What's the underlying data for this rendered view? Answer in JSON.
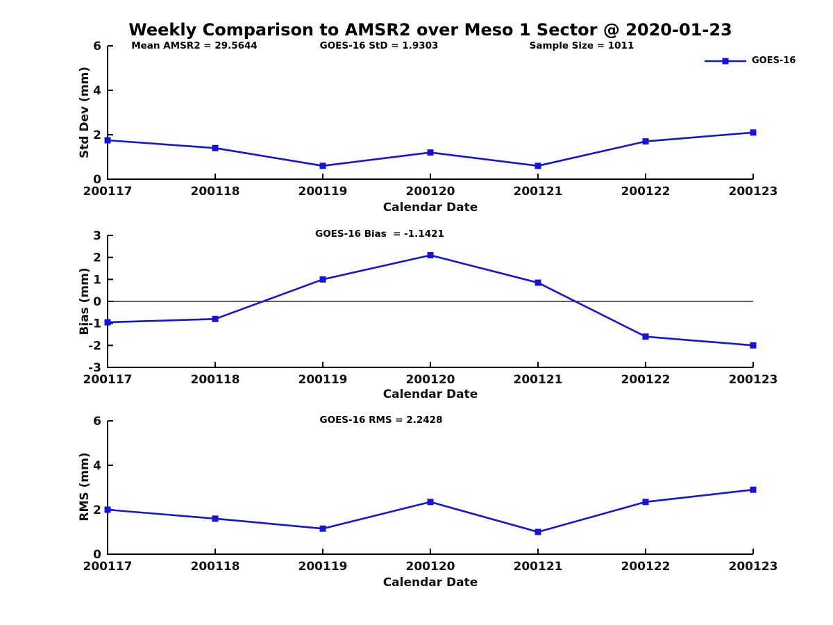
{
  "figure": {
    "background": "#ffffff"
  },
  "title": {
    "text": "Weekly Comparison to AMSR2 over Meso 1 Sector @ 2020-01-23"
  },
  "legend": {
    "label": "GOES-16",
    "line_color": "#1414dd",
    "marker_shape": "filled-square"
  },
  "colors": {
    "series_blue": "#1414dd",
    "axis_black": "#000000"
  },
  "chart_data": [
    {
      "type": "line",
      "panel": "std-dev",
      "ylabel": "Std Dev (mm)",
      "xlabel": "Calendar Date",
      "categories": [
        "200117",
        "200118",
        "200119",
        "200120",
        "200121",
        "200122",
        "200123"
      ],
      "series": [
        {
          "name": "GOES-16",
          "color": "#1414dd",
          "marker": "square",
          "values": [
            1.75,
            1.4,
            0.6,
            1.2,
            0.6,
            1.7,
            2.1
          ]
        }
      ],
      "ylim": [
        0,
        6
      ],
      "yticks": [
        0,
        2,
        4,
        6
      ],
      "zero_line": false,
      "grid": false,
      "legend_position": "top-right",
      "annotations": [
        "Mean AMSR2 = 29.5644",
        "GOES-16 StD = 1.9303",
        "Sample Size = 1011"
      ]
    },
    {
      "type": "line",
      "panel": "bias",
      "ylabel": "Bias (mm)",
      "xlabel": "Calendar Date",
      "categories": [
        "200117",
        "200118",
        "200119",
        "200120",
        "200121",
        "200122",
        "200123"
      ],
      "series": [
        {
          "name": "GOES-16",
          "color": "#1414dd",
          "marker": "square",
          "values": [
            -0.95,
            -0.8,
            1.0,
            2.1,
            0.85,
            -1.6,
            -2.0
          ]
        }
      ],
      "ylim": [
        -3,
        3
      ],
      "yticks": [
        -3,
        -2,
        -1,
        0,
        1,
        2,
        3
      ],
      "zero_line": true,
      "grid": false,
      "annotations": [
        "GOES-16 Bias  = -1.1421"
      ]
    },
    {
      "type": "line",
      "panel": "rms",
      "ylabel": "RMS (mm)",
      "xlabel": "Calendar Date",
      "categories": [
        "200117",
        "200118",
        "200119",
        "200120",
        "200121",
        "200122",
        "200123"
      ],
      "series": [
        {
          "name": "GOES-16",
          "color": "#1414dd",
          "marker": "square",
          "values": [
            2.0,
            1.6,
            1.15,
            2.35,
            1.0,
            2.35,
            2.9
          ]
        }
      ],
      "ylim": [
        0,
        6
      ],
      "yticks": [
        0,
        2,
        4,
        6
      ],
      "zero_line": false,
      "grid": false,
      "annotations": [
        "GOES-16 RMS = 2.2428"
      ]
    }
  ]
}
